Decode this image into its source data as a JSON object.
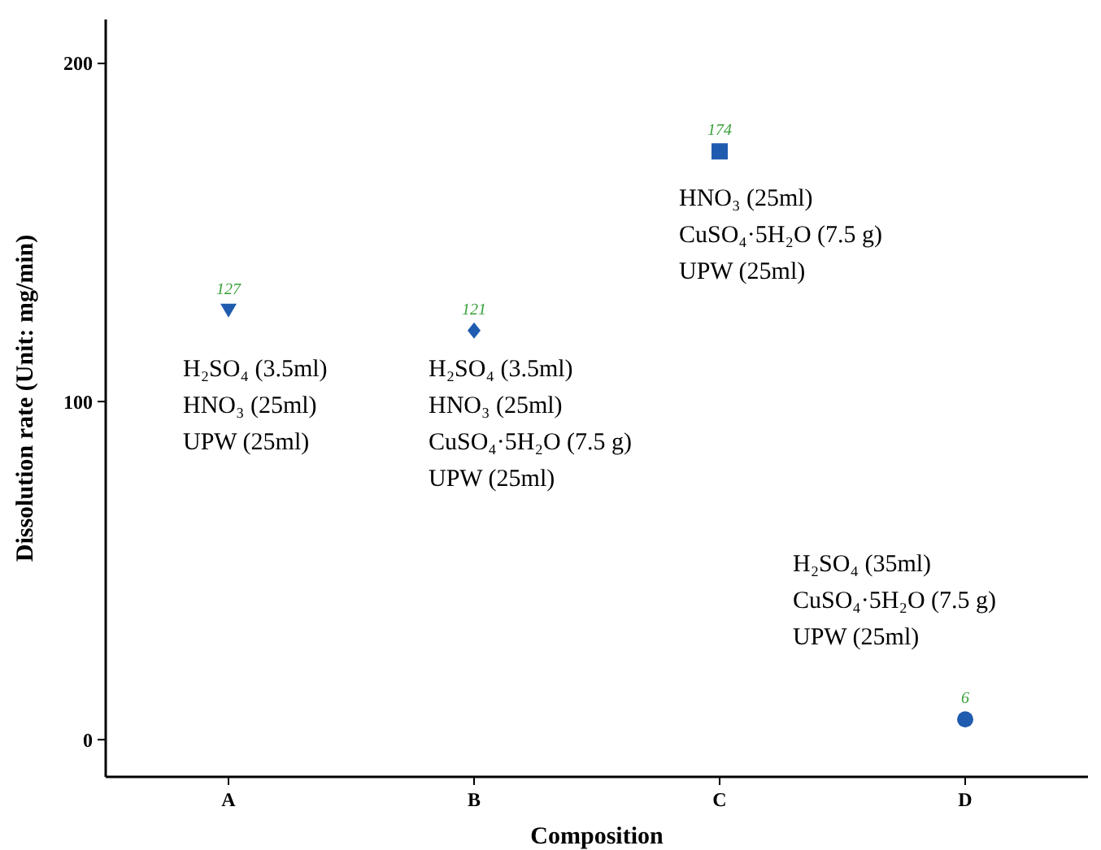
{
  "chart_data": {
    "type": "scatter",
    "xlabel": "Composition",
    "ylabel": "Dissolution rate (Unit: mg/min)",
    "categories": [
      "A",
      "B",
      "C",
      "D"
    ],
    "series": [
      {
        "color": "#1f5cb0",
        "marker": "triangle",
        "values": [
          127,
          null,
          null,
          null
        ]
      },
      {
        "color": "#1f5cb0",
        "marker": "diamond",
        "values": [
          null,
          121,
          null,
          null
        ]
      },
      {
        "color": "#1f5cb0",
        "marker": "square",
        "values": [
          null,
          null,
          174,
          null
        ]
      },
      {
        "color": "#1f5cb0",
        "marker": "circle",
        "values": [
          null,
          null,
          null,
          6
        ]
      }
    ],
    "ylim": [
      -11,
      213
    ],
    "yticks": [
      0,
      100,
      200
    ],
    "grid": false,
    "data_labels": true,
    "annotations": [
      "H₂SO₄ (3.5ml)\nHNO₃ (25ml)\nUPW (25ml)",
      "H₂SO₄ (3.5ml)\nHNO₃ (25ml)\nCuSO₄·5H₂O (7.5 g)\nUPW (25ml)",
      "HNO₃ (25ml)\nCuSO₄·5H₂O (7.5 g)\nUPW (25ml)",
      "H₂SO₄ (35ml)\nCuSO₄·5H₂O (7.5 g)\nUPW (25ml)"
    ]
  }
}
